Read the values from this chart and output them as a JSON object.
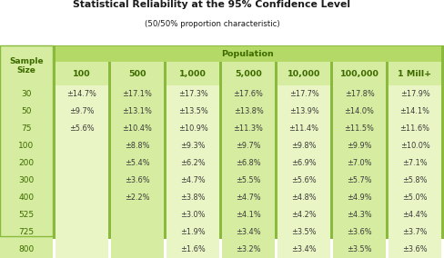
{
  "title": "Statistical Reliability at the 95% Confidence Level",
  "subtitle": "(50/50% proportion characteristic)",
  "population_header": "Population",
  "col_headers": [
    "100",
    "500",
    "1,000",
    "5,000",
    "10,000",
    "100,000",
    "1 Mill+"
  ],
  "row_headers": [
    "30",
    "50",
    "75",
    "100",
    "200",
    "300",
    "400",
    "525",
    "725",
    "800"
  ],
  "table_data": [
    [
      "±14.7%",
      "±17.1%",
      "±17.3%",
      "±17.6%",
      "±17.7%",
      "±17.8%",
      "±17.9%"
    ],
    [
      "±9.7%",
      "±13.1%",
      "±13.5%",
      "±13.8%",
      "±13.9%",
      "±14.0%",
      "±14.1%"
    ],
    [
      "±5.6%",
      "±10.4%",
      "±10.9%",
      "±11.3%",
      "±11.4%",
      "±11.5%",
      "±11.6%"
    ],
    [
      "",
      "±8.8%",
      "±9.3%",
      "±9.7%",
      "±9.8%",
      "±9.9%",
      "±10.0%"
    ],
    [
      "",
      "±5.4%",
      "±6.2%",
      "±6.8%",
      "±6.9%",
      "±7.0%",
      "±7.1%"
    ],
    [
      "",
      "±3.6%",
      "±4.7%",
      "±5.5%",
      "±5.6%",
      "±5.7%",
      "±5.8%"
    ],
    [
      "",
      "±2.2%",
      "±3.8%",
      "±4.7%",
      "±4.8%",
      "±4.9%",
      "±5.0%"
    ],
    [
      "",
      "",
      "±3.0%",
      "±4.1%",
      "±4.2%",
      "±4.3%",
      "±4.4%"
    ],
    [
      "",
      "",
      "±1.9%",
      "±3.4%",
      "±3.5%",
      "±3.6%",
      "±3.7%"
    ],
    [
      "",
      "",
      "±1.6%",
      "±3.2%",
      "±3.4%",
      "±3.5%",
      "±3.6%"
    ]
  ],
  "population_bg": "#b5d966",
  "left_col_bg": "#d6eca0",
  "col_sep_color": "#8aba3c",
  "data_col_bg_light": "#eaf5c5",
  "data_col_bg_dark": "#d6eca0",
  "header_text_color": "#3d6b00",
  "cell_text_color": "#3a3a3a",
  "title_color": "#1a1a1a",
  "white": "#ffffff",
  "title_fontsize": 7.8,
  "subtitle_fontsize": 6.2,
  "header_fontsize": 6.8,
  "cell_fontsize": 5.9,
  "row_label_fontsize": 6.5
}
